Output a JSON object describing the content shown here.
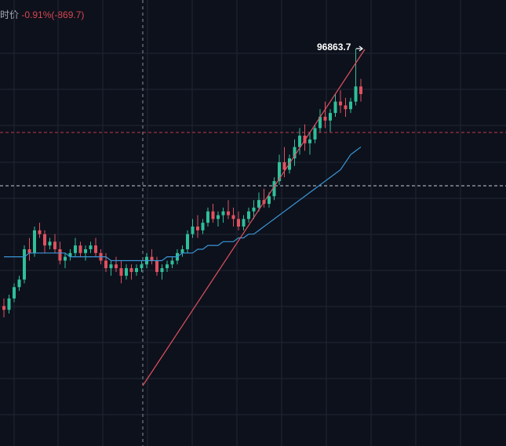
{
  "header": {
    "label": "时价",
    "change_text": "-0.91%(-869.7)"
  },
  "peak_annotation": "96863.7",
  "colors": {
    "background": "#0d111c",
    "grid": "#1f2633",
    "up": "#2fbf9a",
    "down": "#e0515f",
    "ma": "#3a95d6",
    "trend": "#e0515f",
    "crosshair": "#8a909c",
    "hline_red": "#c03a4a",
    "hline_gray": "#c8ccd4"
  },
  "chart_data": {
    "type": "candlestick",
    "price_axis": "not printed",
    "peak": 96863.7,
    "change_percent": -0.91,
    "change_abs": -869.7,
    "candles": [
      [
        0.32,
        0.34,
        0.29,
        0.31
      ],
      [
        0.31,
        0.35,
        0.3,
        0.34
      ],
      [
        0.34,
        0.38,
        0.33,
        0.37
      ],
      [
        0.37,
        0.4,
        0.36,
        0.39
      ],
      [
        0.39,
        0.48,
        0.38,
        0.47
      ],
      [
        0.47,
        0.5,
        0.44,
        0.46
      ],
      [
        0.46,
        0.53,
        0.45,
        0.52
      ],
      [
        0.52,
        0.54,
        0.5,
        0.51
      ],
      [
        0.51,
        0.52,
        0.46,
        0.48
      ],
      [
        0.48,
        0.5,
        0.47,
        0.49
      ],
      [
        0.49,
        0.51,
        0.46,
        0.47
      ],
      [
        0.47,
        0.49,
        0.43,
        0.44
      ],
      [
        0.44,
        0.46,
        0.42,
        0.45
      ],
      [
        0.45,
        0.47,
        0.44,
        0.46
      ],
      [
        0.46,
        0.5,
        0.45,
        0.48
      ],
      [
        0.48,
        0.49,
        0.45,
        0.46
      ],
      [
        0.46,
        0.48,
        0.44,
        0.47
      ],
      [
        0.47,
        0.49,
        0.46,
        0.48
      ],
      [
        0.48,
        0.5,
        0.45,
        0.46
      ],
      [
        0.46,
        0.47,
        0.43,
        0.44
      ],
      [
        0.44,
        0.46,
        0.41,
        0.42
      ],
      [
        0.42,
        0.44,
        0.4,
        0.43
      ],
      [
        0.43,
        0.45,
        0.41,
        0.42
      ],
      [
        0.42,
        0.44,
        0.38,
        0.4
      ],
      [
        0.4,
        0.43,
        0.39,
        0.42
      ],
      [
        0.42,
        0.43,
        0.39,
        0.41
      ],
      [
        0.41,
        0.43,
        0.4,
        0.42
      ],
      [
        0.42,
        0.44,
        0.41,
        0.43
      ],
      [
        0.43,
        0.46,
        0.42,
        0.45
      ],
      [
        0.45,
        0.47,
        0.43,
        0.44
      ],
      [
        0.44,
        0.45,
        0.4,
        0.41
      ],
      [
        0.41,
        0.43,
        0.39,
        0.42
      ],
      [
        0.42,
        0.44,
        0.41,
        0.43
      ],
      [
        0.43,
        0.45,
        0.42,
        0.44
      ],
      [
        0.44,
        0.47,
        0.43,
        0.46
      ],
      [
        0.46,
        0.48,
        0.45,
        0.47
      ],
      [
        0.47,
        0.52,
        0.46,
        0.51
      ],
      [
        0.51,
        0.55,
        0.5,
        0.53
      ],
      [
        0.53,
        0.56,
        0.5,
        0.52
      ],
      [
        0.52,
        0.55,
        0.51,
        0.54
      ],
      [
        0.54,
        0.58,
        0.53,
        0.57
      ],
      [
        0.57,
        0.59,
        0.54,
        0.55
      ],
      [
        0.55,
        0.57,
        0.53,
        0.56
      ],
      [
        0.56,
        0.58,
        0.54,
        0.57
      ],
      [
        0.57,
        0.6,
        0.55,
        0.56
      ],
      [
        0.56,
        0.58,
        0.53,
        0.55
      ],
      [
        0.55,
        0.57,
        0.52,
        0.53
      ],
      [
        0.53,
        0.56,
        0.52,
        0.55
      ],
      [
        0.55,
        0.58,
        0.54,
        0.57
      ],
      [
        0.57,
        0.6,
        0.55,
        0.58
      ],
      [
        0.58,
        0.62,
        0.57,
        0.6
      ],
      [
        0.6,
        0.63,
        0.58,
        0.59
      ],
      [
        0.59,
        0.62,
        0.58,
        0.61
      ],
      [
        0.61,
        0.66,
        0.6,
        0.65
      ],
      [
        0.65,
        0.72,
        0.64,
        0.7
      ],
      [
        0.7,
        0.74,
        0.66,
        0.68
      ],
      [
        0.68,
        0.72,
        0.67,
        0.71
      ],
      [
        0.71,
        0.76,
        0.69,
        0.74
      ],
      [
        0.74,
        0.79,
        0.72,
        0.77
      ],
      [
        0.77,
        0.8,
        0.73,
        0.75
      ],
      [
        0.75,
        0.78,
        0.72,
        0.76
      ],
      [
        0.76,
        0.8,
        0.75,
        0.79
      ],
      [
        0.79,
        0.84,
        0.78,
        0.82
      ],
      [
        0.82,
        0.86,
        0.79,
        0.81
      ],
      [
        0.81,
        0.84,
        0.78,
        0.83
      ],
      [
        0.83,
        0.88,
        0.82,
        0.86
      ],
      [
        0.86,
        0.89,
        0.83,
        0.85
      ],
      [
        0.85,
        0.87,
        0.82,
        0.84
      ],
      [
        0.84,
        0.87,
        0.83,
        0.86
      ],
      [
        0.86,
        1.0,
        0.85,
        0.9
      ],
      [
        0.9,
        0.92,
        0.86,
        0.88
      ]
    ],
    "moving_average": [
      0.45,
      0.45,
      0.45,
      0.45,
      0.45,
      0.46,
      0.46,
      0.46,
      0.46,
      0.46,
      0.46,
      0.46,
      0.46,
      0.45,
      0.45,
      0.45,
      0.45,
      0.45,
      0.45,
      0.45,
      0.45,
      0.44,
      0.44,
      0.44,
      0.44,
      0.44,
      0.44,
      0.44,
      0.44,
      0.44,
      0.44,
      0.44,
      0.45,
      0.45,
      0.45,
      0.46,
      0.46,
      0.46,
      0.47,
      0.47,
      0.48,
      0.48,
      0.48,
      0.49,
      0.49,
      0.49,
      0.5,
      0.5,
      0.51,
      0.51,
      0.52,
      0.53,
      0.54,
      0.55,
      0.56,
      0.57,
      0.58,
      0.59,
      0.6,
      0.61,
      0.62,
      0.63,
      0.64,
      0.65,
      0.66,
      0.67,
      0.68,
      0.7,
      0.72,
      0.73,
      0.74
    ]
  }
}
